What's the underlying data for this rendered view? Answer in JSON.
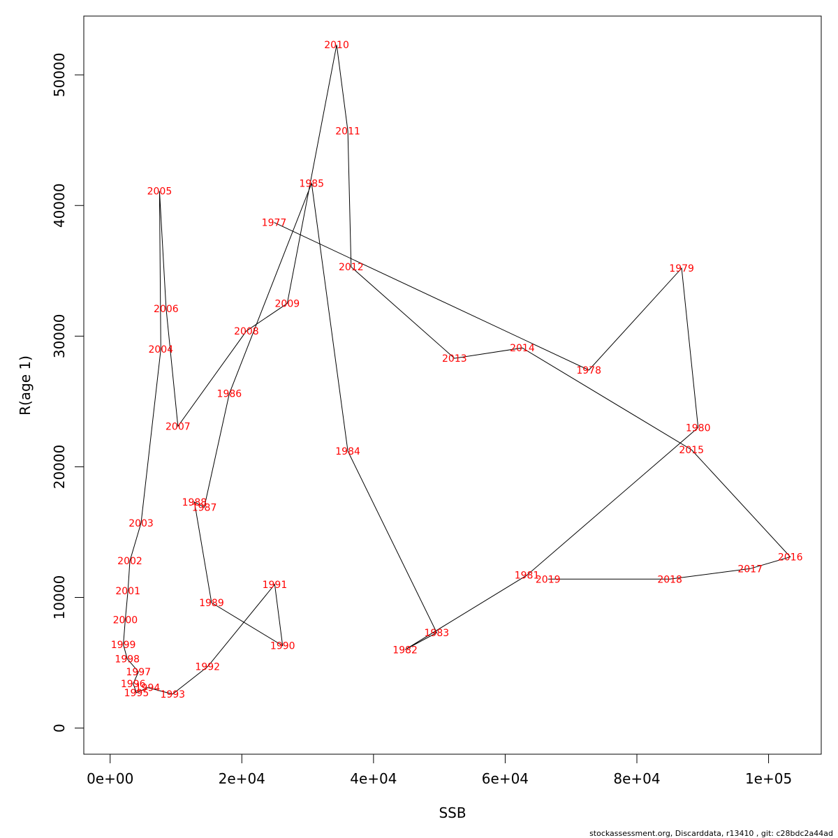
{
  "chart_data": {
    "type": "line",
    "xlabel": "SSB",
    "ylabel": "R(age 1)",
    "xlim": [
      -4000,
      108000
    ],
    "ylim": [
      -2000,
      54500
    ],
    "x_ticks": [
      0,
      20000,
      40000,
      60000,
      80000,
      100000
    ],
    "x_tick_labels": [
      "0e+00",
      "2e+04",
      "4e+04",
      "6e+04",
      "8e+04",
      "1e+05"
    ],
    "y_ticks": [
      0,
      10000,
      20000,
      30000,
      40000,
      50000
    ],
    "y_tick_labels": [
      "0",
      "10000",
      "20000",
      "30000",
      "40000",
      "50000"
    ],
    "line_color": "#000000",
    "label_color": "#ff0000",
    "points": [
      {
        "year": "1977",
        "ssb": 24900,
        "r": 38700
      },
      {
        "year": "1978",
        "ssb": 72700,
        "r": 27400
      },
      {
        "year": "1979",
        "ssb": 86800,
        "r": 35200
      },
      {
        "year": "1980",
        "ssb": 89300,
        "r": 23000
      },
      {
        "year": "1981",
        "ssb": 63300,
        "r": 11700
      },
      {
        "year": "1982",
        "ssb": 44800,
        "r": 6000
      },
      {
        "year": "1983",
        "ssb": 49600,
        "r": 7300
      },
      {
        "year": "1984",
        "ssb": 36100,
        "r": 21200
      },
      {
        "year": "1985",
        "ssb": 30600,
        "r": 41700
      },
      {
        "year": "1986",
        "ssb": 18100,
        "r": 25600
      },
      {
        "year": "1987",
        "ssb": 14300,
        "r": 16900
      },
      {
        "year": "1988",
        "ssb": 12800,
        "r": 17300
      },
      {
        "year": "1989",
        "ssb": 15400,
        "r": 9600
      },
      {
        "year": "1990",
        "ssb": 26200,
        "r": 6300
      },
      {
        "year": "1991",
        "ssb": 25000,
        "r": 11000
      },
      {
        "year": "1992",
        "ssb": 14800,
        "r": 4700
      },
      {
        "year": "1993",
        "ssb": 9500,
        "r": 2600
      },
      {
        "year": "1994",
        "ssb": 5700,
        "r": 3100
      },
      {
        "year": "1995",
        "ssb": 4000,
        "r": 2700
      },
      {
        "year": "1996",
        "ssb": 3500,
        "r": 3400
      },
      {
        "year": "1997",
        "ssb": 4300,
        "r": 4300
      },
      {
        "year": "1998",
        "ssb": 2600,
        "r": 5300
      },
      {
        "year": "1999",
        "ssb": 2000,
        "r": 6400
      },
      {
        "year": "2000",
        "ssb": 2300,
        "r": 8300
      },
      {
        "year": "2001",
        "ssb": 2700,
        "r": 10500
      },
      {
        "year": "2002",
        "ssb": 3000,
        "r": 12800
      },
      {
        "year": "2003",
        "ssb": 4700,
        "r": 15700
      },
      {
        "year": "2004",
        "ssb": 7700,
        "r": 29000
      },
      {
        "year": "2005",
        "ssb": 7500,
        "r": 41100
      },
      {
        "year": "2006",
        "ssb": 8500,
        "r": 32100
      },
      {
        "year": "2007",
        "ssb": 10300,
        "r": 23100
      },
      {
        "year": "2008",
        "ssb": 20700,
        "r": 30400
      },
      {
        "year": "2009",
        "ssb": 26900,
        "r": 32500
      },
      {
        "year": "2010",
        "ssb": 34400,
        "r": 52300
      },
      {
        "year": "2011",
        "ssb": 36100,
        "r": 45700
      },
      {
        "year": "2012",
        "ssb": 36600,
        "r": 35300
      },
      {
        "year": "2013",
        "ssb": 52300,
        "r": 28300
      },
      {
        "year": "2014",
        "ssb": 62600,
        "r": 29100
      },
      {
        "year": "2015",
        "ssb": 88300,
        "r": 21300
      },
      {
        "year": "2016",
        "ssb": 103300,
        "r": 13100
      },
      {
        "year": "2017",
        "ssb": 97200,
        "r": 12200
      },
      {
        "year": "2018",
        "ssb": 85000,
        "r": 11400
      },
      {
        "year": "2019",
        "ssb": 66500,
        "r": 11400
      }
    ]
  },
  "footer_text": "stockassessment.org, Discarddata, r13410 , git: c28bdc2a44ad"
}
